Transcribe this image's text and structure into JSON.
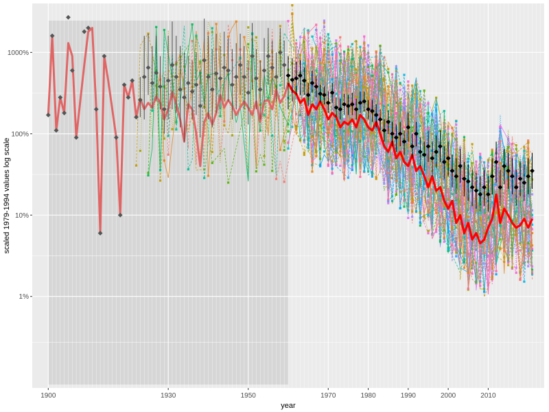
{
  "chart_data": {
    "type": "line",
    "xlabel": "year",
    "ylabel": "scaled 1979-1994 values log scale",
    "x_range": [
      1896,
      2024
    ],
    "y_scale": "log",
    "y_range_percent": [
      0.075,
      4000
    ],
    "x_ticks": [
      {
        "value": 1900,
        "label": "1900"
      },
      {
        "value": 1930,
        "label": "1930"
      },
      {
        "value": 1950,
        "label": "1950"
      },
      {
        "value": 1970,
        "label": "1970"
      },
      {
        "value": 1980,
        "label": "1980"
      },
      {
        "value": 1990,
        "label": "1990"
      },
      {
        "value": 2000,
        "label": "2000"
      },
      {
        "value": 2010,
        "label": "2010"
      }
    ],
    "y_ticks": [
      {
        "value": 1,
        "label": "1%"
      },
      {
        "value": 10,
        "label": "10%"
      },
      {
        "value": 100,
        "label": "100%"
      },
      {
        "value": 1000,
        "label": "1000%"
      }
    ],
    "shaded_region": {
      "x_start": 1900,
      "x_end": 1960
    },
    "grid": true,
    "legend": "none",
    "series": [
      {
        "role": "median",
        "color": "#e06666",
        "points": [
          [
            1900,
            170
          ],
          [
            1901,
            1600
          ],
          [
            1902,
            110
          ],
          [
            1903,
            280
          ],
          [
            1904,
            180
          ],
          [
            1905,
            1300
          ],
          [
            1906,
            900
          ],
          [
            1907,
            90
          ],
          [
            1908,
            250
          ],
          [
            1909,
            700
          ],
          [
            1910,
            1800
          ],
          [
            1911,
            2000
          ],
          [
            1912,
            200
          ],
          [
            1913,
            6
          ],
          [
            1914,
            900
          ],
          [
            1915,
            450
          ],
          [
            1916,
            200
          ],
          [
            1917,
            90
          ],
          [
            1918,
            10
          ],
          [
            1919,
            400
          ],
          [
            1920,
            280
          ],
          [
            1921,
            450
          ],
          [
            1922,
            160
          ],
          [
            1923,
            270
          ],
          [
            1924,
            200
          ],
          [
            1925,
            240
          ],
          [
            1926,
            210
          ],
          [
            1927,
            290
          ],
          [
            1928,
            240
          ],
          [
            1929,
            150
          ],
          [
            1930,
            200
          ],
          [
            1931,
            330
          ],
          [
            1932,
            230
          ],
          [
            1933,
            150
          ],
          [
            1934,
            80
          ],
          [
            1935,
            230
          ],
          [
            1936,
            200
          ],
          [
            1937,
            100
          ],
          [
            1938,
            40
          ],
          [
            1939,
            140
          ],
          [
            1940,
            180
          ],
          [
            1941,
            130
          ],
          [
            1942,
            180
          ],
          [
            1943,
            300
          ],
          [
            1944,
            210
          ],
          [
            1945,
            260
          ],
          [
            1946,
            220
          ],
          [
            1947,
            170
          ],
          [
            1948,
            210
          ],
          [
            1949,
            250
          ],
          [
            1950,
            210
          ],
          [
            1951,
            170
          ],
          [
            1952,
            250
          ],
          [
            1953,
            140
          ],
          [
            1954,
            250
          ],
          [
            1955,
            260
          ],
          [
            1956,
            200
          ],
          [
            1957,
            350
          ],
          [
            1958,
            240
          ],
          [
            1959,
            290
          ],
          [
            1960,
            420
          ],
          [
            1961,
            340
          ],
          [
            1962,
            310
          ],
          [
            1963,
            240
          ],
          [
            1964,
            270
          ],
          [
            1965,
            170
          ],
          [
            1966,
            230
          ],
          [
            1967,
            200
          ],
          [
            1968,
            250
          ],
          [
            1969,
            200
          ],
          [
            1970,
            150
          ],
          [
            1971,
            180
          ],
          [
            1972,
            160
          ],
          [
            1973,
            120
          ],
          [
            1974,
            140
          ],
          [
            1975,
            130
          ],
          [
            1976,
            150
          ],
          [
            1977,
            120
          ],
          [
            1978,
            170
          ],
          [
            1979,
            150
          ],
          [
            1980,
            120
          ],
          [
            1981,
            110
          ],
          [
            1982,
            140
          ],
          [
            1983,
            100
          ],
          [
            1984,
            70
          ],
          [
            1985,
            60
          ],
          [
            1986,
            80
          ],
          [
            1987,
            50
          ],
          [
            1988,
            60
          ],
          [
            1989,
            45
          ],
          [
            1990,
            40
          ],
          [
            1991,
            55
          ],
          [
            1992,
            35
          ],
          [
            1993,
            40
          ],
          [
            1994,
            30
          ],
          [
            1995,
            22
          ],
          [
            1996,
            30
          ],
          [
            1997,
            20
          ],
          [
            1998,
            22
          ],
          [
            1999,
            15
          ],
          [
            2000,
            12
          ],
          [
            2001,
            15
          ],
          [
            2002,
            8
          ],
          [
            2003,
            10
          ],
          [
            2004,
            6
          ],
          [
            2005,
            8
          ],
          [
            2006,
            5
          ],
          [
            2007,
            6
          ],
          [
            2008,
            4.5
          ],
          [
            2009,
            5
          ],
          [
            2010,
            7
          ],
          [
            2011,
            9
          ],
          [
            2012,
            18
          ],
          [
            2013,
            8
          ],
          [
            2014,
            12
          ],
          [
            2015,
            10
          ],
          [
            2016,
            8
          ],
          [
            2017,
            7
          ],
          [
            2018,
            7.5
          ],
          [
            2019,
            9
          ],
          [
            2020,
            7
          ],
          [
            2021,
            9
          ]
        ]
      },
      {
        "role": "mean-with-errorbars",
        "color": "#444444",
        "points": [
          [
            1900,
            170,
            170,
            170
          ],
          [
            1901,
            1600,
            1600,
            1600
          ],
          [
            1902,
            110,
            110,
            110
          ],
          [
            1903,
            280,
            280,
            280
          ],
          [
            1904,
            180,
            180,
            180
          ],
          [
            1905,
            2700,
            2700,
            2700
          ],
          [
            1906,
            600,
            600,
            600
          ],
          [
            1907,
            90,
            90,
            90
          ],
          [
            1909,
            1800,
            1800,
            1800
          ],
          [
            1910,
            2000,
            2000,
            2000
          ],
          [
            1912,
            200,
            200,
            200
          ],
          [
            1913,
            6,
            6,
            6
          ],
          [
            1914,
            900,
            900,
            900
          ],
          [
            1917,
            90,
            90,
            90
          ],
          [
            1918,
            10,
            10,
            10
          ],
          [
            1919,
            400,
            400,
            400
          ],
          [
            1920,
            280,
            280,
            280
          ],
          [
            1921,
            450,
            450,
            450
          ],
          [
            1922,
            160,
            160,
            160
          ],
          [
            1923,
            260,
            160,
            500
          ],
          [
            1924,
            500,
            150,
            1600
          ],
          [
            1925,
            650,
            300,
            1700
          ],
          [
            1926,
            420,
            200,
            1200
          ],
          [
            1927,
            560,
            250,
            1600
          ],
          [
            1928,
            380,
            200,
            900
          ],
          [
            1929,
            200,
            100,
            500
          ],
          [
            1930,
            450,
            150,
            1600
          ],
          [
            1931,
            700,
            200,
            2400
          ],
          [
            1932,
            500,
            180,
            1600
          ],
          [
            1933,
            350,
            120,
            1200
          ],
          [
            1934,
            280,
            80,
            1000
          ],
          [
            1935,
            420,
            200,
            900
          ],
          [
            1936,
            330,
            150,
            800
          ],
          [
            1937,
            400,
            170,
            1000
          ],
          [
            1938,
            220,
            90,
            600
          ],
          [
            1939,
            800,
            200,
            2600
          ],
          [
            1940,
            500,
            150,
            1600
          ],
          [
            1941,
            350,
            120,
            1100
          ],
          [
            1942,
            550,
            180,
            1700
          ],
          [
            1943,
            480,
            200,
            1200
          ],
          [
            1944,
            650,
            250,
            1800
          ],
          [
            1945,
            600,
            250,
            1500
          ],
          [
            1946,
            400,
            150,
            1100
          ],
          [
            1947,
            500,
            200,
            1300
          ],
          [
            1948,
            700,
            300,
            1700
          ],
          [
            1949,
            500,
            200,
            1200
          ],
          [
            1950,
            320,
            130,
            800
          ],
          [
            1951,
            900,
            350,
            2300
          ],
          [
            1952,
            480,
            200,
            1100
          ],
          [
            1953,
            350,
            150,
            800
          ],
          [
            1954,
            600,
            250,
            1500
          ],
          [
            1955,
            900,
            400,
            2000
          ],
          [
            1956,
            650,
            300,
            1400
          ],
          [
            1957,
            500,
            250,
            1000
          ],
          [
            1958,
            1000,
            500,
            2000
          ],
          [
            1959,
            700,
            350,
            1400
          ],
          [
            1960,
            520,
            200,
            900
          ],
          [
            1961,
            460,
            250,
            850
          ],
          [
            1962,
            480,
            300,
            770
          ],
          [
            1963,
            520,
            300,
            800
          ],
          [
            1964,
            450,
            300,
            650
          ],
          [
            1965,
            300,
            220,
            420
          ],
          [
            1966,
            420,
            320,
            600
          ],
          [
            1967,
            380,
            280,
            520
          ],
          [
            1968,
            310,
            240,
            400
          ],
          [
            1969,
            300,
            230,
            380
          ],
          [
            1970,
            240,
            180,
            330
          ],
          [
            1971,
            320,
            240,
            420
          ],
          [
            1972,
            210,
            160,
            280
          ],
          [
            1973,
            200,
            150,
            270
          ],
          [
            1974,
            230,
            170,
            310
          ],
          [
            1975,
            220,
            170,
            300
          ],
          [
            1976,
            230,
            170,
            320
          ],
          [
            1977,
            200,
            150,
            270
          ],
          [
            1978,
            240,
            180,
            330
          ],
          [
            1979,
            250,
            190,
            330
          ],
          [
            1980,
            200,
            150,
            260
          ],
          [
            1981,
            190,
            140,
            260
          ],
          [
            1982,
            170,
            120,
            230
          ],
          [
            1983,
            150,
            110,
            200
          ],
          [
            1984,
            110,
            80,
            150
          ],
          [
            1985,
            140,
            100,
            190
          ],
          [
            1986,
            100,
            70,
            140
          ],
          [
            1987,
            90,
            60,
            130
          ],
          [
            1988,
            100,
            70,
            140
          ],
          [
            1989,
            80,
            55,
            110
          ],
          [
            1990,
            120,
            80,
            180
          ],
          [
            1991,
            70,
            50,
            100
          ],
          [
            1992,
            100,
            70,
            140
          ],
          [
            1993,
            60,
            40,
            90
          ],
          [
            1994,
            55,
            35,
            80
          ],
          [
            1995,
            70,
            45,
            110
          ],
          [
            1996,
            50,
            30,
            80
          ],
          [
            1997,
            60,
            38,
            95
          ],
          [
            1998,
            70,
            45,
            110
          ],
          [
            1999,
            45,
            28,
            70
          ],
          [
            2000,
            50,
            30,
            80
          ],
          [
            2001,
            35,
            22,
            55
          ],
          [
            2002,
            30,
            18,
            50
          ],
          [
            2003,
            40,
            25,
            65
          ],
          [
            2004,
            28,
            17,
            45
          ],
          [
            2005,
            26,
            15,
            42
          ],
          [
            2006,
            22,
            13,
            36
          ],
          [
            2007,
            20,
            12,
            33
          ],
          [
            2008,
            18,
            11,
            30
          ],
          [
            2009,
            22,
            13,
            36
          ],
          [
            2010,
            18,
            11,
            30
          ],
          [
            2011,
            30,
            18,
            50
          ],
          [
            2012,
            45,
            25,
            80
          ],
          [
            2013,
            22,
            13,
            36
          ],
          [
            2014,
            40,
            24,
            65
          ],
          [
            2015,
            35,
            21,
            58
          ],
          [
            2016,
            30,
            18,
            50
          ],
          [
            2017,
            22,
            13,
            36
          ],
          [
            2018,
            28,
            17,
            46
          ],
          [
            2019,
            25,
            15,
            42
          ],
          [
            2020,
            30,
            18,
            50
          ],
          [
            2021,
            35,
            21,
            58
          ]
        ]
      }
    ]
  }
}
